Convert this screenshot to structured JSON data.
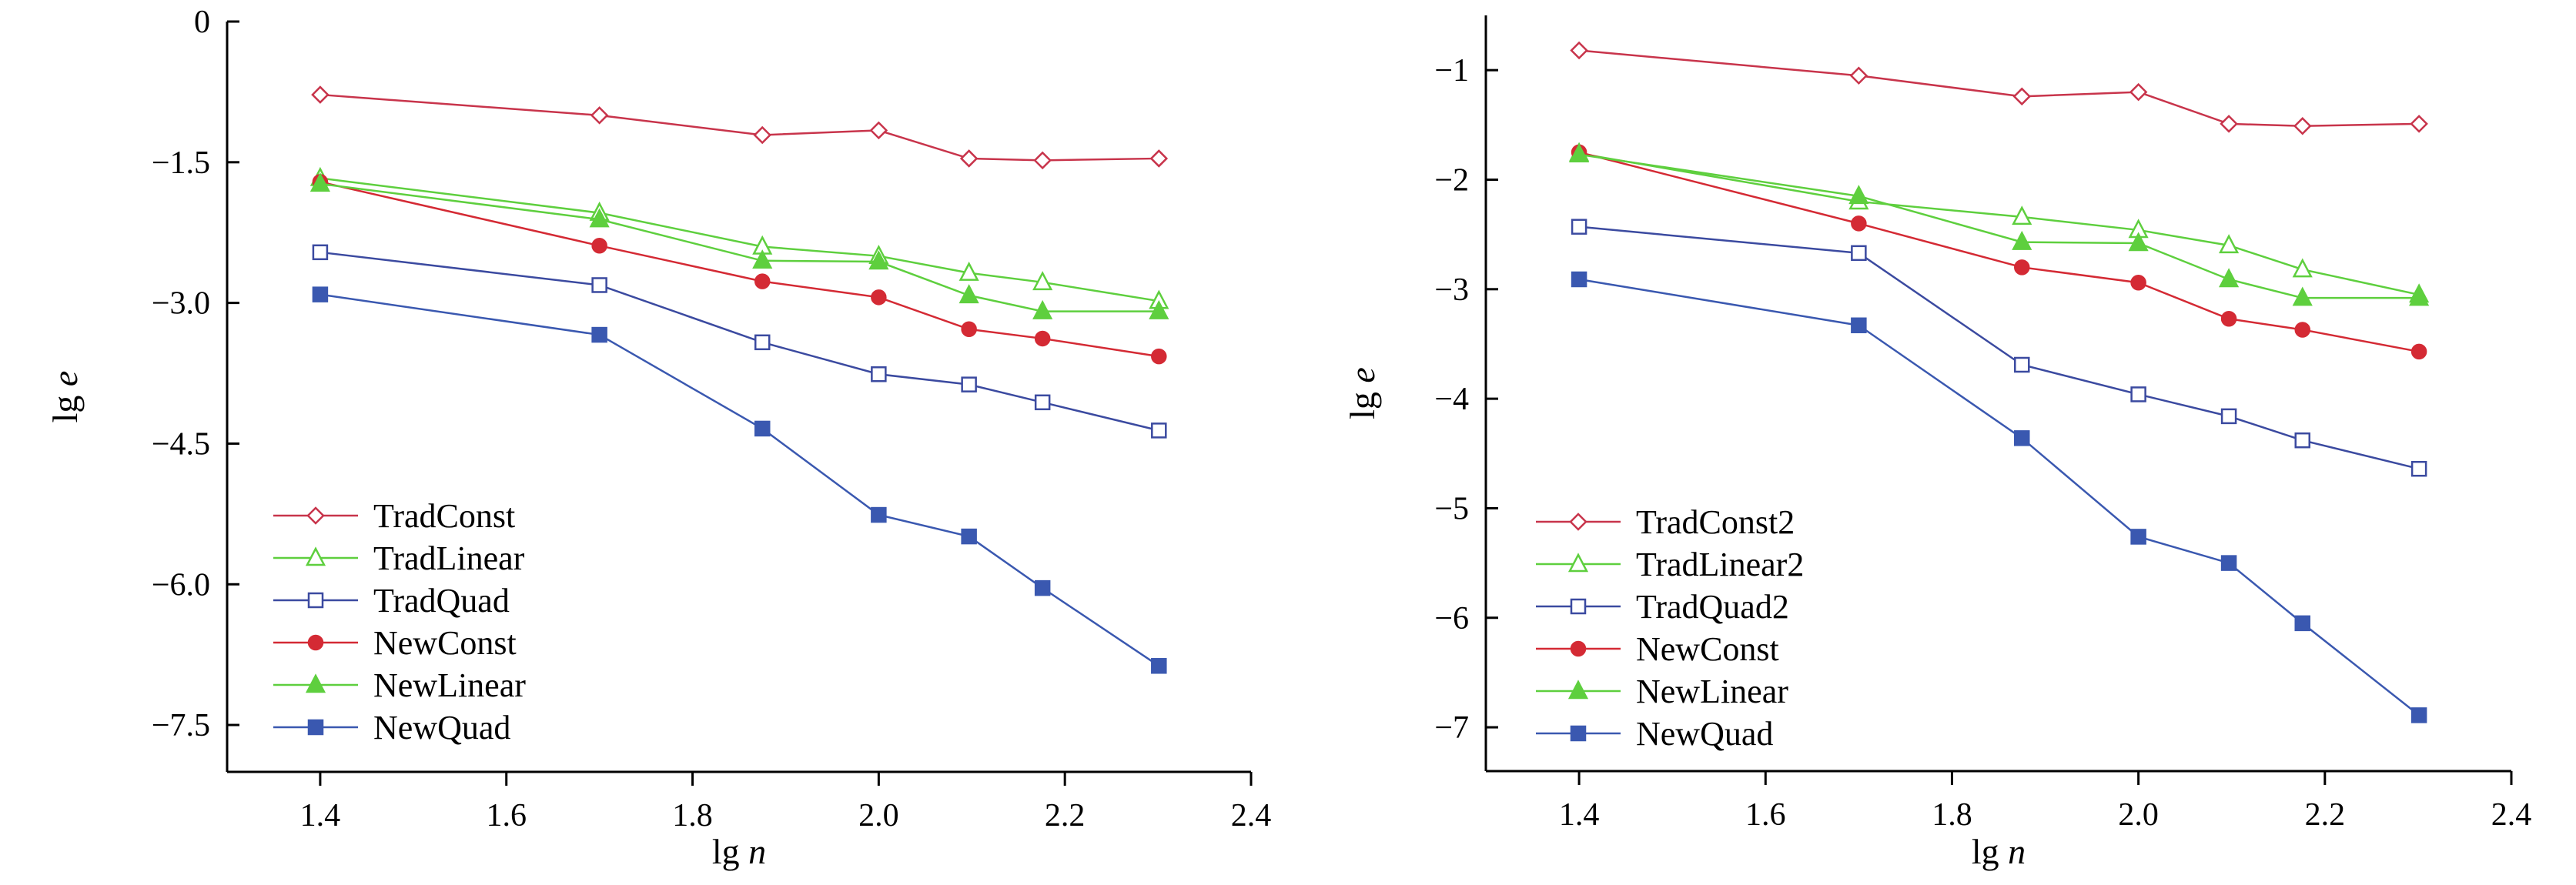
{
  "chart_data": [
    {
      "type": "line",
      "xlabel": {
        "main": "lg",
        "var": "n"
      },
      "ylabel": {
        "main": "lg",
        "var": "e"
      },
      "xlim": [
        1.3,
        2.4
      ],
      "ylim": [
        -8.0,
        0.0
      ],
      "xticks": [
        1.4,
        1.6,
        1.8,
        2.0,
        2.2,
        2.4
      ],
      "xtick_labels": [
        "1.4",
        "1.6",
        "1.8",
        "2.0",
        "2.2",
        "2.4"
      ],
      "yticks": [
        0,
        -1.5,
        -3.0,
        -4.5,
        -6.0,
        -7.5
      ],
      "ytick_labels": [
        "0",
        "−1.5",
        "−3.0",
        "−4.5",
        "−6.0",
        "−7.5"
      ],
      "grid": false,
      "legend_position": "bottom-left",
      "x": [
        1.4,
        1.7,
        1.875,
        2.0,
        2.097,
        2.176,
        2.301
      ],
      "series": [
        {
          "name": "TradConst",
          "color": "#c8344b",
          "marker": "diamond-open",
          "values": [
            -0.78,
            -1.0,
            -1.21,
            -1.16,
            -1.46,
            -1.48,
            -1.46
          ]
        },
        {
          "name": "TradLinear",
          "color": "#5ecf3e",
          "marker": "triangle-open",
          "values": [
            -1.67,
            -2.04,
            -2.4,
            -2.5,
            -2.68,
            -2.78,
            -2.98
          ]
        },
        {
          "name": "TradQuad",
          "color": "#3b4aa0",
          "marker": "square-open",
          "values": [
            -2.46,
            -2.81,
            -3.42,
            -3.76,
            -3.87,
            -4.06,
            -4.36
          ]
        },
        {
          "name": "NewConst",
          "color": "#d42a34",
          "marker": "circle-filled",
          "values": [
            -1.71,
            -2.39,
            -2.77,
            -2.94,
            -3.28,
            -3.38,
            -3.57
          ]
        },
        {
          "name": "NewLinear",
          "color": "#5ecf3e",
          "marker": "triangle-filled",
          "values": [
            -1.73,
            -2.11,
            -2.55,
            -2.56,
            -2.92,
            -3.09,
            -3.09
          ]
        },
        {
          "name": "NewQuad",
          "color": "#3a58b0",
          "marker": "square-filled",
          "values": [
            -2.91,
            -3.34,
            -4.34,
            -5.26,
            -5.49,
            -6.04,
            -6.87
          ]
        }
      ]
    },
    {
      "type": "line",
      "xlabel": {
        "main": "lg",
        "var": "n"
      },
      "ylabel": {
        "main": "lg",
        "var": "e"
      },
      "xlim": [
        1.3,
        2.4
      ],
      "ylim": [
        -7.4,
        -0.5
      ],
      "xticks": [
        1.4,
        1.6,
        1.8,
        2.0,
        2.2,
        2.4
      ],
      "xtick_labels": [
        "1.4",
        "1.6",
        "1.8",
        "2.0",
        "2.2",
        "2.4"
      ],
      "yticks": [
        -1,
        -2,
        -3,
        -4,
        -5,
        -6,
        -7
      ],
      "ytick_labels": [
        "−1",
        "−2",
        "−3",
        "−4",
        "−5",
        "−6",
        "−7"
      ],
      "grid": false,
      "legend_position": "bottom-left",
      "x": [
        1.4,
        1.7,
        1.875,
        2.0,
        2.097,
        2.176,
        2.301
      ],
      "series": [
        {
          "name": "TradConst2",
          "color": "#c8344b",
          "marker": "diamond-open",
          "values": [
            -0.82,
            -1.05,
            -1.24,
            -1.2,
            -1.49,
            -1.51,
            -1.49
          ]
        },
        {
          "name": "TradLinear2",
          "color": "#5ecf3e",
          "marker": "triangle-open",
          "values": [
            -1.76,
            -2.2,
            -2.34,
            -2.46,
            -2.6,
            -2.82,
            -3.05
          ]
        },
        {
          "name": "TradQuad2",
          "color": "#3b4aa0",
          "marker": "square-open",
          "values": [
            -2.43,
            -2.67,
            -3.69,
            -3.96,
            -4.16,
            -4.38,
            -4.64
          ]
        },
        {
          "name": "NewConst",
          "color": "#d42a34",
          "marker": "circle-filled",
          "values": [
            -1.75,
            -2.4,
            -2.8,
            -2.94,
            -3.27,
            -3.37,
            -3.57
          ]
        },
        {
          "name": "NewLinear",
          "color": "#5ecf3e",
          "marker": "triangle-filled",
          "values": [
            -1.77,
            -2.15,
            -2.57,
            -2.58,
            -2.91,
            -3.08,
            -3.08
          ]
        },
        {
          "name": "NewQuad",
          "color": "#3a58b0",
          "marker": "square-filled",
          "values": [
            -2.91,
            -3.33,
            -4.36,
            -5.26,
            -5.5,
            -6.05,
            -6.89
          ]
        }
      ]
    }
  ]
}
